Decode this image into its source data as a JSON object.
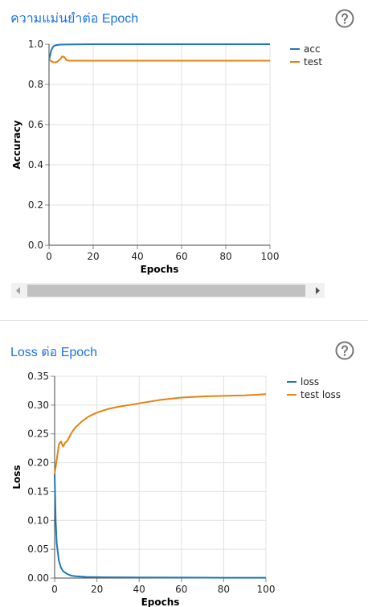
{
  "panels": [
    {
      "title": "ความแม่นยำต่อ Epoch",
      "help_icon": "help-circle-icon",
      "chart_data": {
        "type": "line",
        "xlabel": "Epochs",
        "ylabel": "Accuracy",
        "xlim": [
          0,
          100
        ],
        "ylim": [
          0,
          1.0
        ],
        "xticks": [
          "0",
          "20",
          "40",
          "60",
          "80",
          "100"
        ],
        "yticks": [
          "0.0",
          "0.2",
          "0.4",
          "0.6",
          "0.8",
          "1.0"
        ],
        "grid": true,
        "legend": "right",
        "series": [
          {
            "name": "acc",
            "color": "#1f77b4",
            "x": [
              0,
              1,
              2,
              3,
              5,
              10,
              20,
              40,
              60,
              80,
              100
            ],
            "y": [
              0.92,
              0.97,
              0.99,
              0.995,
              0.998,
              0.999,
              1.0,
              1.0,
              1.0,
              1.0,
              1.0
            ]
          },
          {
            "name": "test",
            "color": "#e6820e",
            "x": [
              0,
              1,
              2,
              3,
              4,
              5,
              6,
              7,
              8,
              9,
              10,
              20,
              40,
              60,
              80,
              100
            ],
            "y": [
              0.925,
              0.915,
              0.91,
              0.91,
              0.915,
              0.925,
              0.94,
              0.935,
              0.92,
              0.918,
              0.918,
              0.918,
              0.918,
              0.918,
              0.918,
              0.918
            ]
          }
        ]
      }
    },
    {
      "title": "Loss ต่อ Epoch",
      "help_icon": "help-circle-icon",
      "chart_data": {
        "type": "line",
        "xlabel": "Epochs",
        "ylabel": "Loss",
        "xlim": [
          0,
          100
        ],
        "ylim": [
          0,
          0.35
        ],
        "xticks": [
          "0",
          "20",
          "40",
          "60",
          "80",
          "100"
        ],
        "yticks": [
          "0.00",
          "0.05",
          "0.10",
          "0.15",
          "0.20",
          "0.25",
          "0.30",
          "0.35"
        ],
        "grid": true,
        "legend": "right",
        "series": [
          {
            "name": "loss",
            "color": "#1f77b4",
            "x": [
              0,
              0.5,
              1,
              2,
              3,
              4,
              6,
              8,
              10,
              15,
              20,
              40,
              60,
              80,
              100
            ],
            "y": [
              0.18,
              0.1,
              0.06,
              0.03,
              0.018,
              0.012,
              0.007,
              0.004,
              0.003,
              0.002,
              0.0015,
              0.001,
              0.0008,
              0.0006,
              0.0005
            ]
          },
          {
            "name": "test loss",
            "color": "#e6820e",
            "x": [
              0,
              1,
              2,
              3,
              4,
              5,
              6,
              7,
              8,
              10,
              13,
              16,
              20,
              25,
              30,
              40,
              50,
              60,
              70,
              80,
              90,
              100
            ],
            "y": [
              0.18,
              0.205,
              0.232,
              0.237,
              0.228,
              0.235,
              0.238,
              0.245,
              0.252,
              0.262,
              0.272,
              0.28,
              0.287,
              0.293,
              0.297,
              0.303,
              0.309,
              0.313,
              0.315,
              0.316,
              0.317,
              0.319
            ]
          }
        ]
      }
    }
  ]
}
